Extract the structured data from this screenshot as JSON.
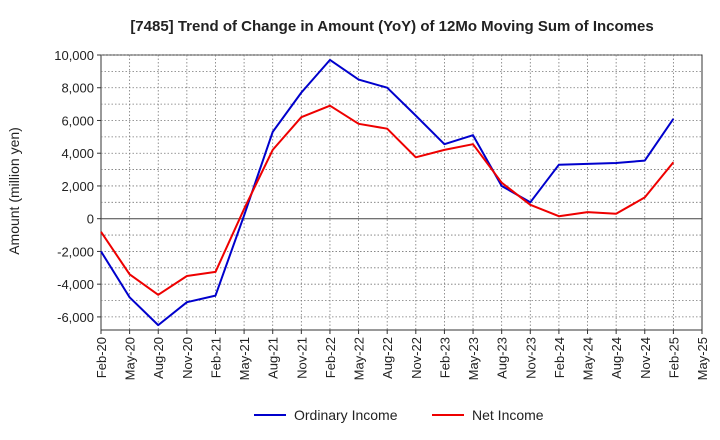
{
  "chart_data": {
    "type": "line",
    "title": "[7485]  Trend of Change in Amount (YoY) of 12Mo Moving Sum of Incomes",
    "ylabel": "Amount (million yen)",
    "xlabel": "",
    "ylim": [
      -6800,
      10000
    ],
    "yticks": [
      10000,
      8000,
      6000,
      4000,
      2000,
      0,
      -2000,
      -4000,
      -6000
    ],
    "ytick_labels": [
      "10,000",
      "8,000",
      "6,000",
      "4,000",
      "2,000",
      "0",
      "-2,000",
      "-4,000",
      "-6,000"
    ],
    "categories": [
      "Feb-20",
      "May-20",
      "Aug-20",
      "Nov-20",
      "Feb-21",
      "May-21",
      "Aug-21",
      "Nov-21",
      "Feb-22",
      "May-22",
      "Aug-22",
      "Nov-22",
      "Feb-23",
      "May-23",
      "Aug-23",
      "Nov-23",
      "Feb-24",
      "May-24",
      "Aug-24",
      "Nov-24",
      "Feb-25",
      "May-25"
    ],
    "grid": true,
    "legend_position": "bottom",
    "series": [
      {
        "name": "Ordinary Income",
        "color": "#0000cc",
        "values": [
          -2000,
          -4800,
          -6500,
          -5100,
          -4700,
          200,
          5300,
          7700,
          9700,
          8500,
          8000,
          6300,
          4550,
          5100,
          2000,
          1000,
          3300,
          3350,
          3400,
          3550,
          6100,
          null
        ]
      },
      {
        "name": "Net Income",
        "color": "#ee0000",
        "values": [
          -800,
          -3400,
          -4650,
          -3500,
          -3250,
          600,
          4200,
          6200,
          6900,
          5800,
          5500,
          3750,
          4200,
          4550,
          2200,
          850,
          150,
          400,
          300,
          1300,
          3450,
          null
        ]
      }
    ]
  }
}
